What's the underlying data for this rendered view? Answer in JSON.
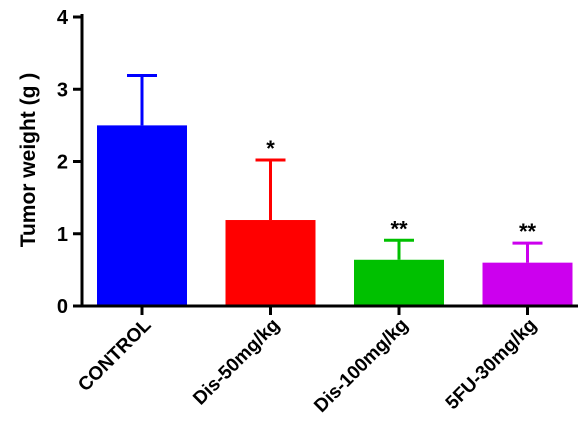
{
  "chart_data": {
    "type": "bar",
    "title": "",
    "xlabel": "",
    "ylabel": "Tumor weight (g )",
    "ylim": [
      0,
      4
    ],
    "yticks": [
      "0",
      "1",
      "2",
      "3",
      "4"
    ],
    "grid": false,
    "categories": [
      "CONTROL",
      "Dis-50mg/kg",
      "Dis-100mg/kg",
      "5FU-30mg/kg"
    ],
    "values": [
      2.5,
      1.19,
      0.64,
      0.6
    ],
    "error_upper": [
      0.69,
      0.83,
      0.27,
      0.27
    ],
    "significance": [
      "",
      "*",
      "**",
      "**"
    ],
    "colors": [
      "#0000FF",
      "#FF0000",
      "#00C000",
      "#CC00EE"
    ]
  }
}
